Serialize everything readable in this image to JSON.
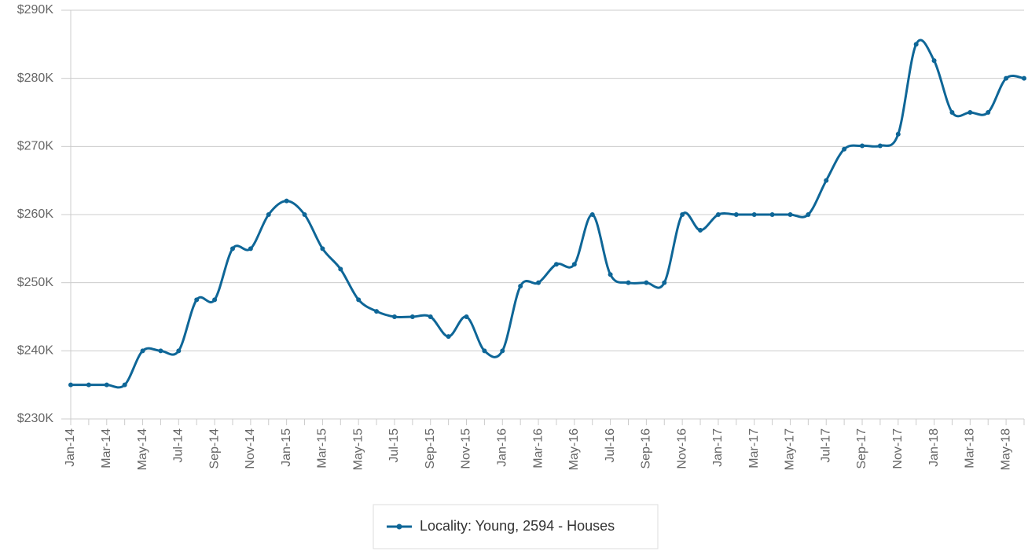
{
  "chart_data": {
    "type": "line",
    "categories": [
      "Jan-14",
      null,
      "Mar-14",
      null,
      "May-14",
      null,
      "Jul-14",
      null,
      "Sep-14",
      null,
      "Nov-14",
      null,
      "Jan-15",
      null,
      "Mar-15",
      null,
      "May-15",
      null,
      "Jul-15",
      null,
      "Sep-15",
      null,
      "Nov-15",
      null,
      "Jan-16",
      null,
      "Mar-16",
      null,
      "May-16",
      null,
      "Jul-16",
      null,
      "Sep-16",
      null,
      "Nov-16",
      null,
      "Jan-17",
      null,
      "Mar-17",
      null,
      "May-17",
      null,
      "Jul-17",
      null,
      "Sep-17",
      null,
      "Nov-17",
      null,
      "Jan-18",
      null,
      "Mar-18",
      null,
      "May-18",
      null
    ],
    "series": [
      {
        "name": "Locality: Young, 2594 - Houses",
        "color": "#0e6697",
        "values": [
          235000,
          235000,
          235000,
          235000,
          240000,
          240000,
          240000,
          247500,
          247500,
          255000,
          255000,
          260000,
          262000,
          260000,
          255000,
          252000,
          247500,
          245800,
          245000,
          245000,
          245000,
          242100,
          245000,
          240000,
          240000,
          249500,
          250000,
          252700,
          252700,
          260000,
          251200,
          250000,
          250000,
          250000,
          260000,
          257700,
          260000,
          260000,
          260000,
          260000,
          260000,
          260000,
          265000,
          269600,
          270100,
          270100,
          271800,
          285000,
          282600,
          275000,
          275000,
          275000,
          280000,
          280000
        ]
      }
    ],
    "ylim": [
      230000,
      290000
    ],
    "yticks": [
      {
        "value": 230000,
        "label": "$230K"
      },
      {
        "value": 240000,
        "label": "$240K"
      },
      {
        "value": 250000,
        "label": "$250K"
      },
      {
        "value": 260000,
        "label": "$260K"
      },
      {
        "value": 270000,
        "label": "$270K"
      },
      {
        "value": 280000,
        "label": "$280K"
      },
      {
        "value": 290000,
        "label": "$290K"
      }
    ],
    "grid": true,
    "legend": "bottom"
  }
}
